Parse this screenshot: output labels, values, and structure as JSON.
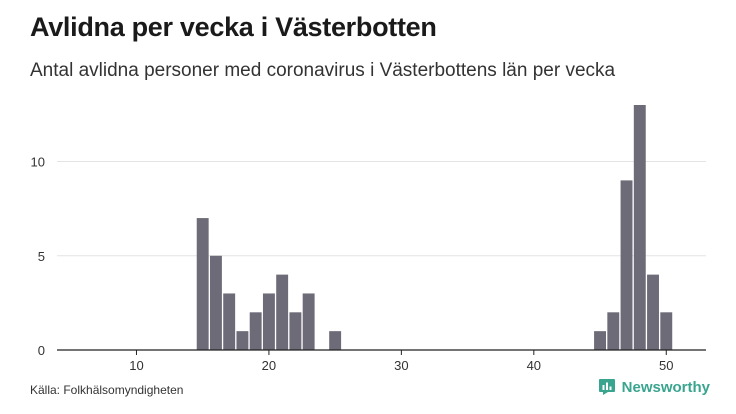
{
  "header": {
    "title": "Avlidna per vecka i Västerbotten",
    "subtitle": "Antal avlidna personer med coronavirus i Västerbottens län per vecka"
  },
  "footer": {
    "source": "Källa: Folkhälsomyndigheten",
    "brand": "Newsworthy",
    "brand_icon": "newsworthy-logo-icon"
  },
  "colors": {
    "bar": "#6e6b78",
    "grid": "#e3e3e3",
    "axis": "#222222",
    "brand": "#3aa58f"
  },
  "chart_data": {
    "type": "bar",
    "title": "Avlidna per vecka i Västerbotten",
    "subtitle": "Antal avlidna personer med coronavirus i Västerbottens län per vecka",
    "xlabel": "",
    "ylabel": "",
    "x": [
      15,
      16,
      17,
      18,
      19,
      20,
      21,
      22,
      23,
      25,
      45,
      46,
      47,
      48,
      49,
      50
    ],
    "values": [
      7,
      5,
      3,
      1,
      2,
      3,
      4,
      2,
      3,
      1,
      1,
      2,
      9,
      13,
      4,
      2
    ],
    "xlim": [
      4,
      53
    ],
    "ylim": [
      0,
      13
    ],
    "xticks": [
      10,
      20,
      30,
      40,
      50
    ],
    "yticks": [
      0,
      5,
      10
    ],
    "grid": true,
    "legend": "none"
  }
}
